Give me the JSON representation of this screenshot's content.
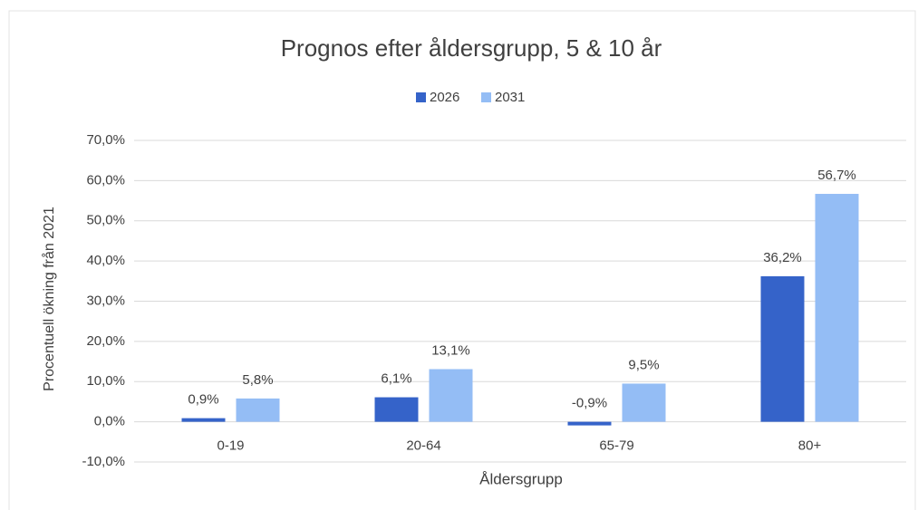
{
  "chart_data": {
    "type": "bar",
    "title": "Prognos efter åldersgrupp, 5 & 10 år",
    "x_label": "Åldersgrupp",
    "y_label": "Procentuell ökning från 2021",
    "categories": [
      "0-19",
      "20-64",
      "65-79",
      "80+"
    ],
    "series": [
      {
        "name": "2026",
        "color": "#3563c9",
        "values": [
          0.9,
          6.1,
          -0.9,
          36.2
        ],
        "value_labels": [
          "0,9%",
          "6,1%",
          "-0,9%",
          "36,2%"
        ]
      },
      {
        "name": "2031",
        "color": "#94bdf5",
        "values": [
          5.8,
          13.1,
          9.5,
          56.7
        ],
        "value_labels": [
          "5,8%",
          "13,1%",
          "9,5%",
          "56,7%"
        ]
      }
    ],
    "ylim": [
      -10,
      70
    ],
    "yticks": [
      {
        "value": -10,
        "label": "-10,0%"
      },
      {
        "value": 0,
        "label": "0,0%"
      },
      {
        "value": 10,
        "label": "10,0%"
      },
      {
        "value": 20,
        "label": "20,0%"
      },
      {
        "value": 30,
        "label": "30,0%"
      },
      {
        "value": 40,
        "label": "40,0%"
      },
      {
        "value": 50,
        "label": "50,0%"
      },
      {
        "value": 60,
        "label": "60,0%"
      },
      {
        "value": 70,
        "label": "70,0%"
      }
    ],
    "grid": true,
    "legend": "top"
  }
}
